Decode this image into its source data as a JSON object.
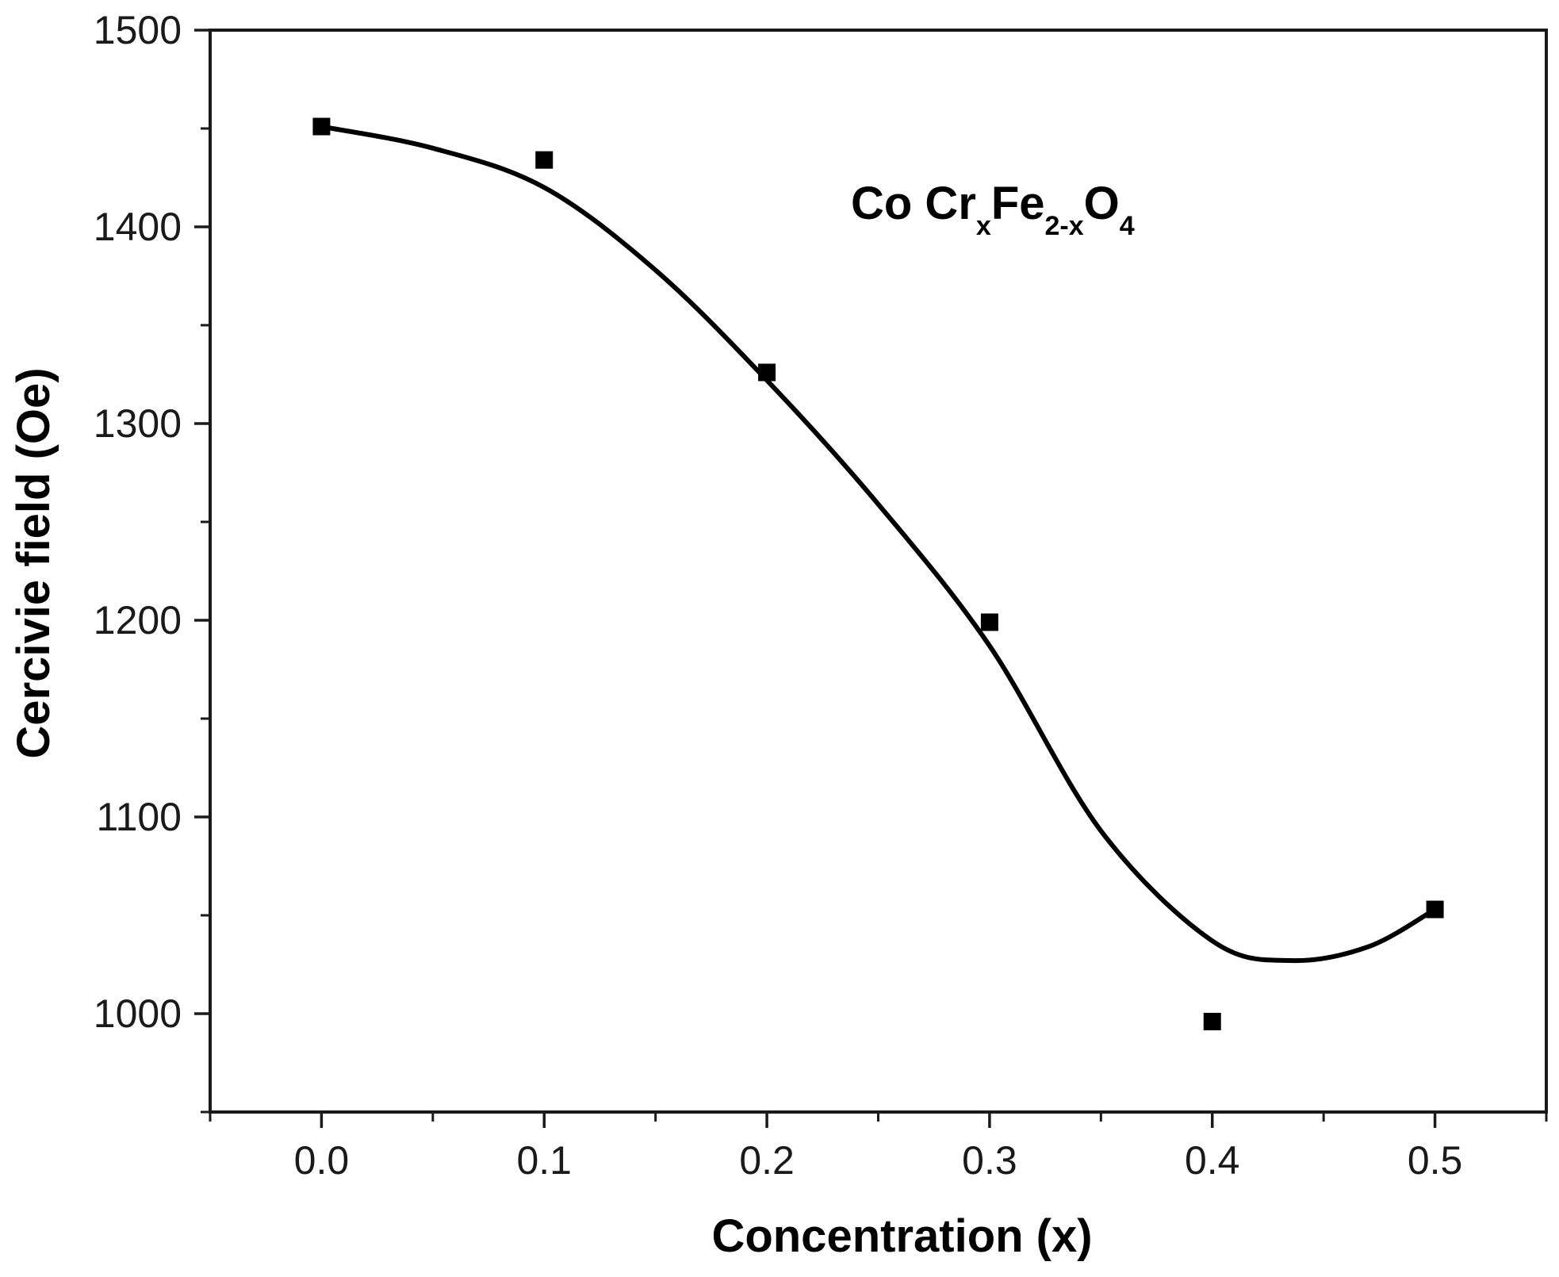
{
  "chart_data": {
    "type": "scatter",
    "title": "",
    "xlabel": "Concentration (x)",
    "ylabel": "Cercivie field (Oe)",
    "xlim": [
      -0.05,
      0.55
    ],
    "ylim": [
      950,
      1500
    ],
    "x_ticks": [
      "0.0",
      "0.1",
      "0.2",
      "0.3",
      "0.4",
      "0.5"
    ],
    "y_ticks": [
      "1000",
      "1100",
      "1200",
      "1300",
      "1400",
      "1500"
    ],
    "grid": false,
    "legend": "none",
    "annotation": {
      "parts": [
        {
          "text": "Co Cr",
          "sub": false
        },
        {
          "text": "x",
          "sub": true
        },
        {
          "text": "Fe",
          "sub": false
        },
        {
          "text": "2-x",
          "sub": true
        },
        {
          "text": "O",
          "sub": false
        },
        {
          "text": "4",
          "sub": true
        }
      ]
    },
    "series": [
      {
        "marker": "square",
        "x": [
          0.0,
          0.1,
          0.2,
          0.3,
          0.4,
          0.5
        ],
        "y": [
          1451,
          1434,
          1326,
          1199,
          996,
          1053
        ]
      },
      {
        "style": "line",
        "x": [
          0.0,
          0.05,
          0.1,
          0.15,
          0.2,
          0.25,
          0.3,
          0.35,
          0.4,
          0.435,
          0.47,
          0.5
        ],
        "y": [
          1451,
          1440,
          1420,
          1378,
          1322,
          1259,
          1187,
          1093,
          1037,
          1027,
          1034,
          1053
        ]
      }
    ],
    "colors": {
      "marks": "#000000",
      "axis": "#1a1a1a"
    }
  }
}
